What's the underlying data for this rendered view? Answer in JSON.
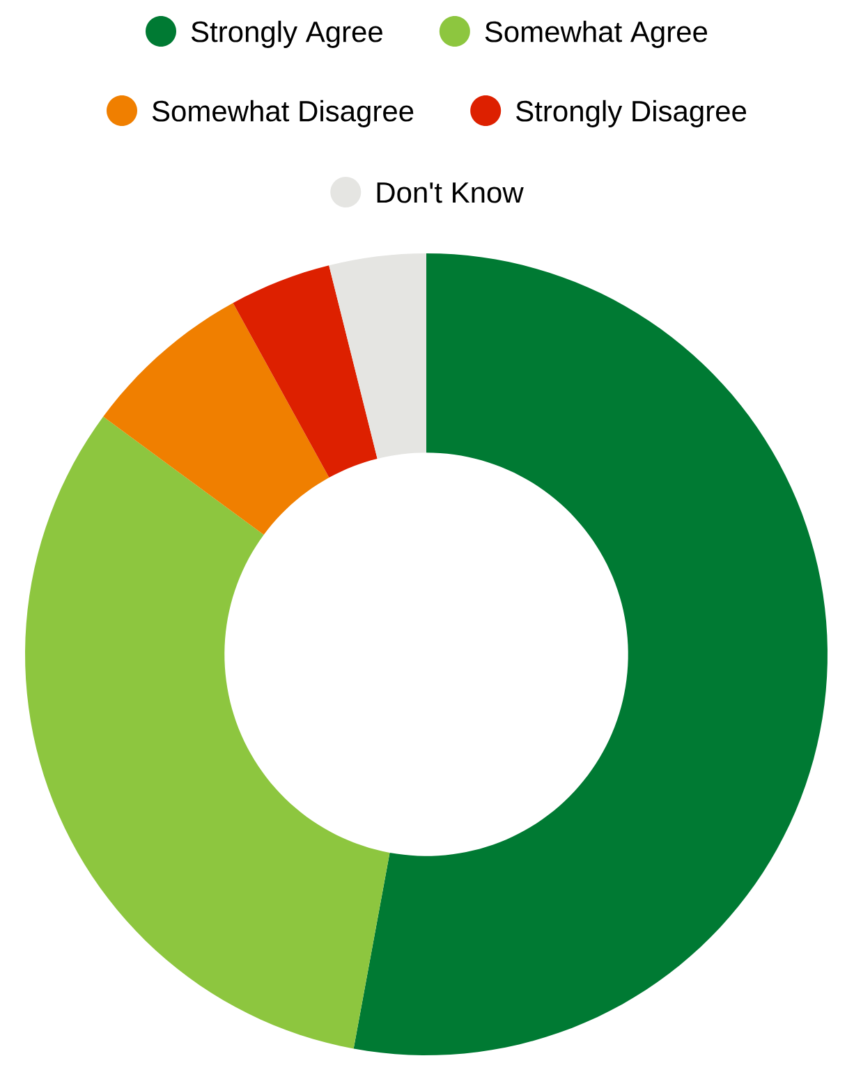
{
  "chart_data": {
    "type": "donut",
    "categories": [
      "Strongly Agree",
      "Somewhat Agree",
      "Somewhat Disagree",
      "Strongly Disagree",
      "Don't Know"
    ],
    "values": [
      52.9,
      32.2,
      6.9,
      4.1,
      3.9
    ],
    "colors": [
      "#007a33",
      "#8dc63f",
      "#f07f00",
      "#dd2000",
      "#e5e5e2"
    ],
    "legend": "top"
  }
}
